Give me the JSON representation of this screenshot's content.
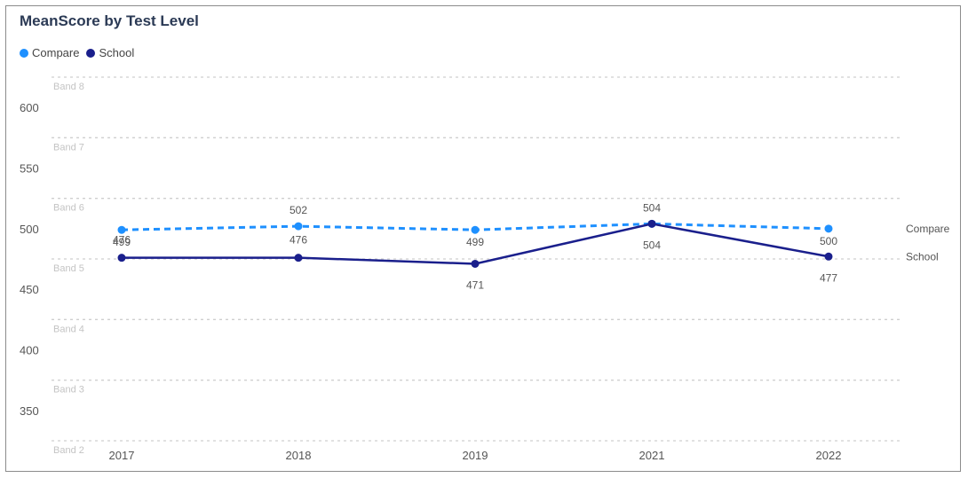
{
  "chart_data": {
    "type": "line",
    "title": "MeanScore by Test Level",
    "categories": [
      "2017",
      "2018",
      "2019",
      "2021",
      "2022"
    ],
    "series": [
      {
        "name": "Compare",
        "values": [
          499,
          502,
          499,
          504,
          500
        ],
        "color": "#1e90ff",
        "style": "dashed"
      },
      {
        "name": "School",
        "values": [
          476,
          476,
          471,
          504,
          477
        ],
        "color": "#1a1f8c",
        "style": "solid"
      }
    ],
    "data_labels": {
      "Compare": [
        "499",
        "502",
        "499",
        "504",
        "500"
      ],
      "School": [
        "476",
        "476",
        "471",
        "504",
        "477"
      ]
    },
    "y_ticks": [
      350,
      400,
      450,
      500,
      550,
      600
    ],
    "ylim": [
      325,
      625
    ],
    "bands": [
      {
        "label": "Band 2",
        "value": 325
      },
      {
        "label": "Band 3",
        "value": 375
      },
      {
        "label": "Band 4",
        "value": 425
      },
      {
        "label": "Band 5",
        "value": 475
      },
      {
        "label": "Band 6",
        "value": 525
      },
      {
        "label": "Band 7",
        "value": 575
      },
      {
        "label": "Band 8",
        "value": 625
      }
    ],
    "legend_position": "top-left",
    "end_labels": true
  }
}
